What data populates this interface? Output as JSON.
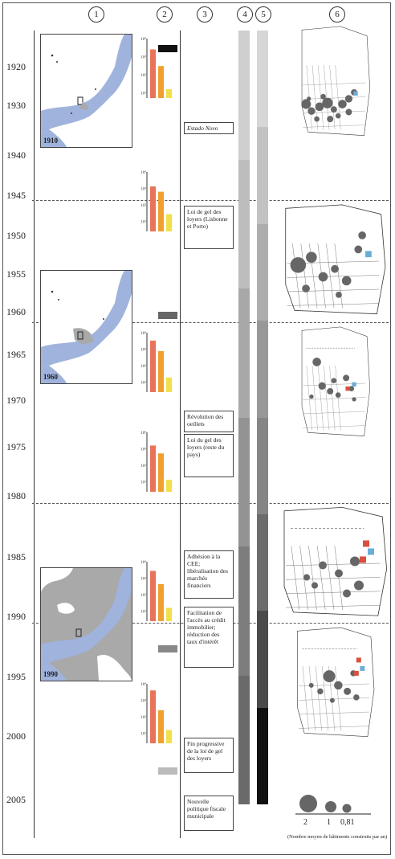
{
  "column_numbers": [
    "1",
    "2",
    "3",
    "4",
    "5",
    "6"
  ],
  "years": [
    "1920",
    "1930",
    "1940",
    "1945",
    "1950",
    "1955",
    "1960",
    "1965",
    "1970",
    "1975",
    "1980",
    "1985",
    "1990",
    "1995",
    "2000",
    "2005"
  ],
  "maps": [
    {
      "label": "1910"
    },
    {
      "label": "1960"
    },
    {
      "label": "1990"
    }
  ],
  "charts": {
    "tick_labels": [
      "10⁴",
      "10³",
      "10²",
      "10¹",
      "10⁰"
    ],
    "bar_colors": [
      "#e8735a",
      "#f0a030",
      "#f2e04a"
    ],
    "relative_values": [
      [
        0.85,
        0.62,
        0.3
      ],
      [
        0.78,
        0.7,
        0.36
      ],
      [
        0.88,
        0.72,
        0.32
      ],
      [
        0.8,
        0.68,
        0.28
      ],
      [
        0.86,
        0.66,
        0.3
      ],
      [
        0.9,
        0.6,
        0.3
      ]
    ]
  },
  "events": [
    {
      "text": "Estado Novo"
    },
    {
      "text": "Loi de gel des loyers (Lisbonne et Porto)"
    },
    {
      "text": "Révolution des oeillets"
    },
    {
      "text": "Loi du gel des loyers (reste du pays)"
    },
    {
      "text": "Adhésion à la CEE; libéralisation des marchés financiers"
    },
    {
      "text": "Facilitation de l'accès au crédit immobilier; réduction des taux d'intérêt"
    },
    {
      "text": "Fin progressive de la loi de gel des loyers"
    },
    {
      "text": "Nouvelle politique fiscale municipale"
    }
  ],
  "marker_colors": [
    "#111111",
    "#666666",
    "#888888",
    "#bbbbbb"
  ],
  "band_colors_4": [
    "#cfcfcf",
    "#bdbdbd",
    "#a8a8a8",
    "#939393",
    "#7d7d7d",
    "#6a6a6a"
  ],
  "band_colors_5": [
    "#d6d6d6",
    "#c2c2c2",
    "#adadad",
    "#989898",
    "#858585",
    "#6c6c6c",
    "#4a4a4a",
    "#111111"
  ],
  "map_colors": {
    "water": "#9fb3dc",
    "built": "#a9a9a9",
    "circle": "#666666",
    "blue": "#6aaed6",
    "red": "#d9503f"
  },
  "legend": {
    "values": [
      "2",
      "1",
      "0,81"
    ],
    "note": "(Nombre moyen de bâtiments construits par an)"
  }
}
